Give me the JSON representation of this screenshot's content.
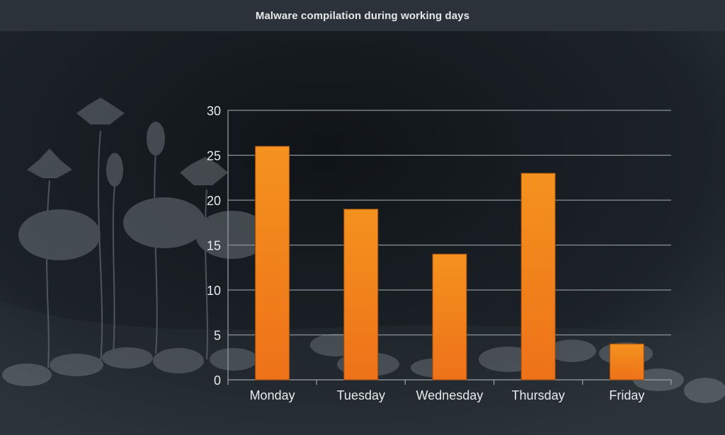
{
  "chart_data": {
    "type": "bar",
    "title": "Malware compilation during working days",
    "categories": [
      "Monday",
      "Tuesday",
      "Wednesday",
      "Thursday",
      "Friday"
    ],
    "values": [
      26,
      19,
      14,
      23,
      4
    ],
    "ylim": [
      0,
      30
    ],
    "yticks": [
      0,
      5,
      10,
      15,
      20,
      25,
      30
    ],
    "grid": true,
    "legend": "none",
    "xlabel": "",
    "ylabel": ""
  },
  "colors": {
    "bar_top": "#f4921e",
    "bar_bottom": "#ee7219",
    "bar_stroke": "#9a4a10",
    "gridline": "#8b949c",
    "axis": "#9aa2a8",
    "background": "#1a1f24",
    "title_bar": "#2b3239"
  }
}
